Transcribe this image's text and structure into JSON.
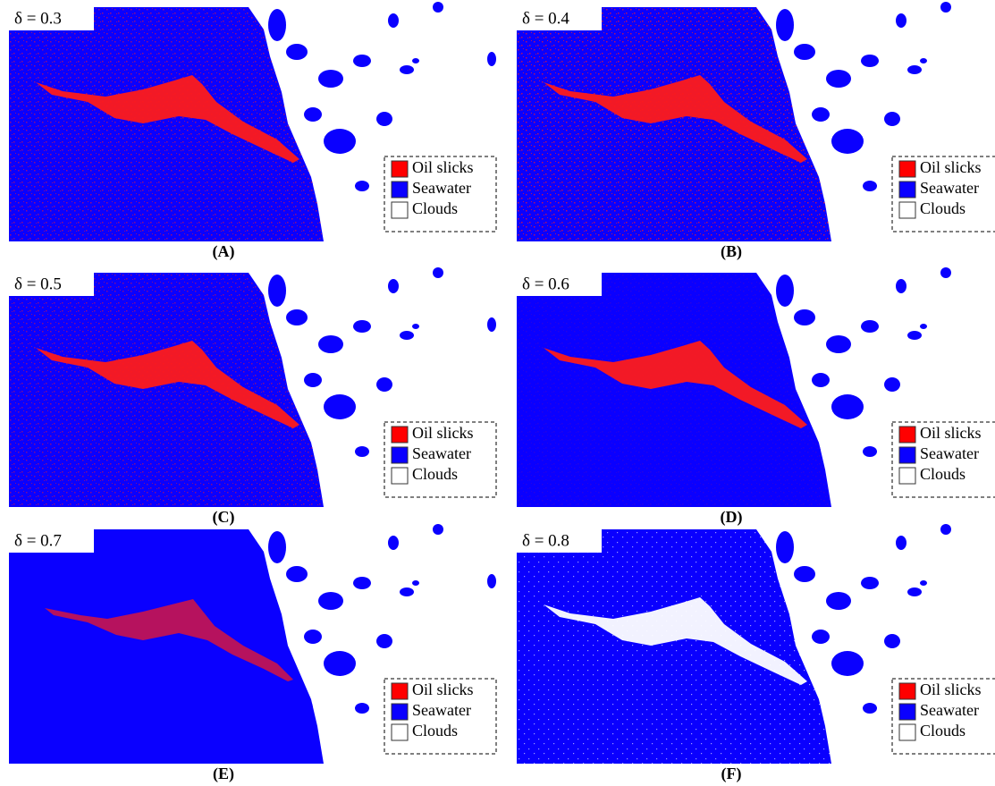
{
  "panels": [
    {
      "label": "δ = 0.3",
      "caption": "(A)"
    },
    {
      "label": "δ = 0.4",
      "caption": "(B)"
    },
    {
      "label": "δ = 0.5",
      "caption": "(C)"
    },
    {
      "label": "δ = 0.6",
      "caption": "(D)"
    },
    {
      "label": "δ = 0.7",
      "caption": "(E)"
    },
    {
      "label": "δ = 0.8",
      "caption": "(F)"
    }
  ],
  "legend": [
    "Oil slicks",
    "Seawater",
    "Clouds"
  ]
}
